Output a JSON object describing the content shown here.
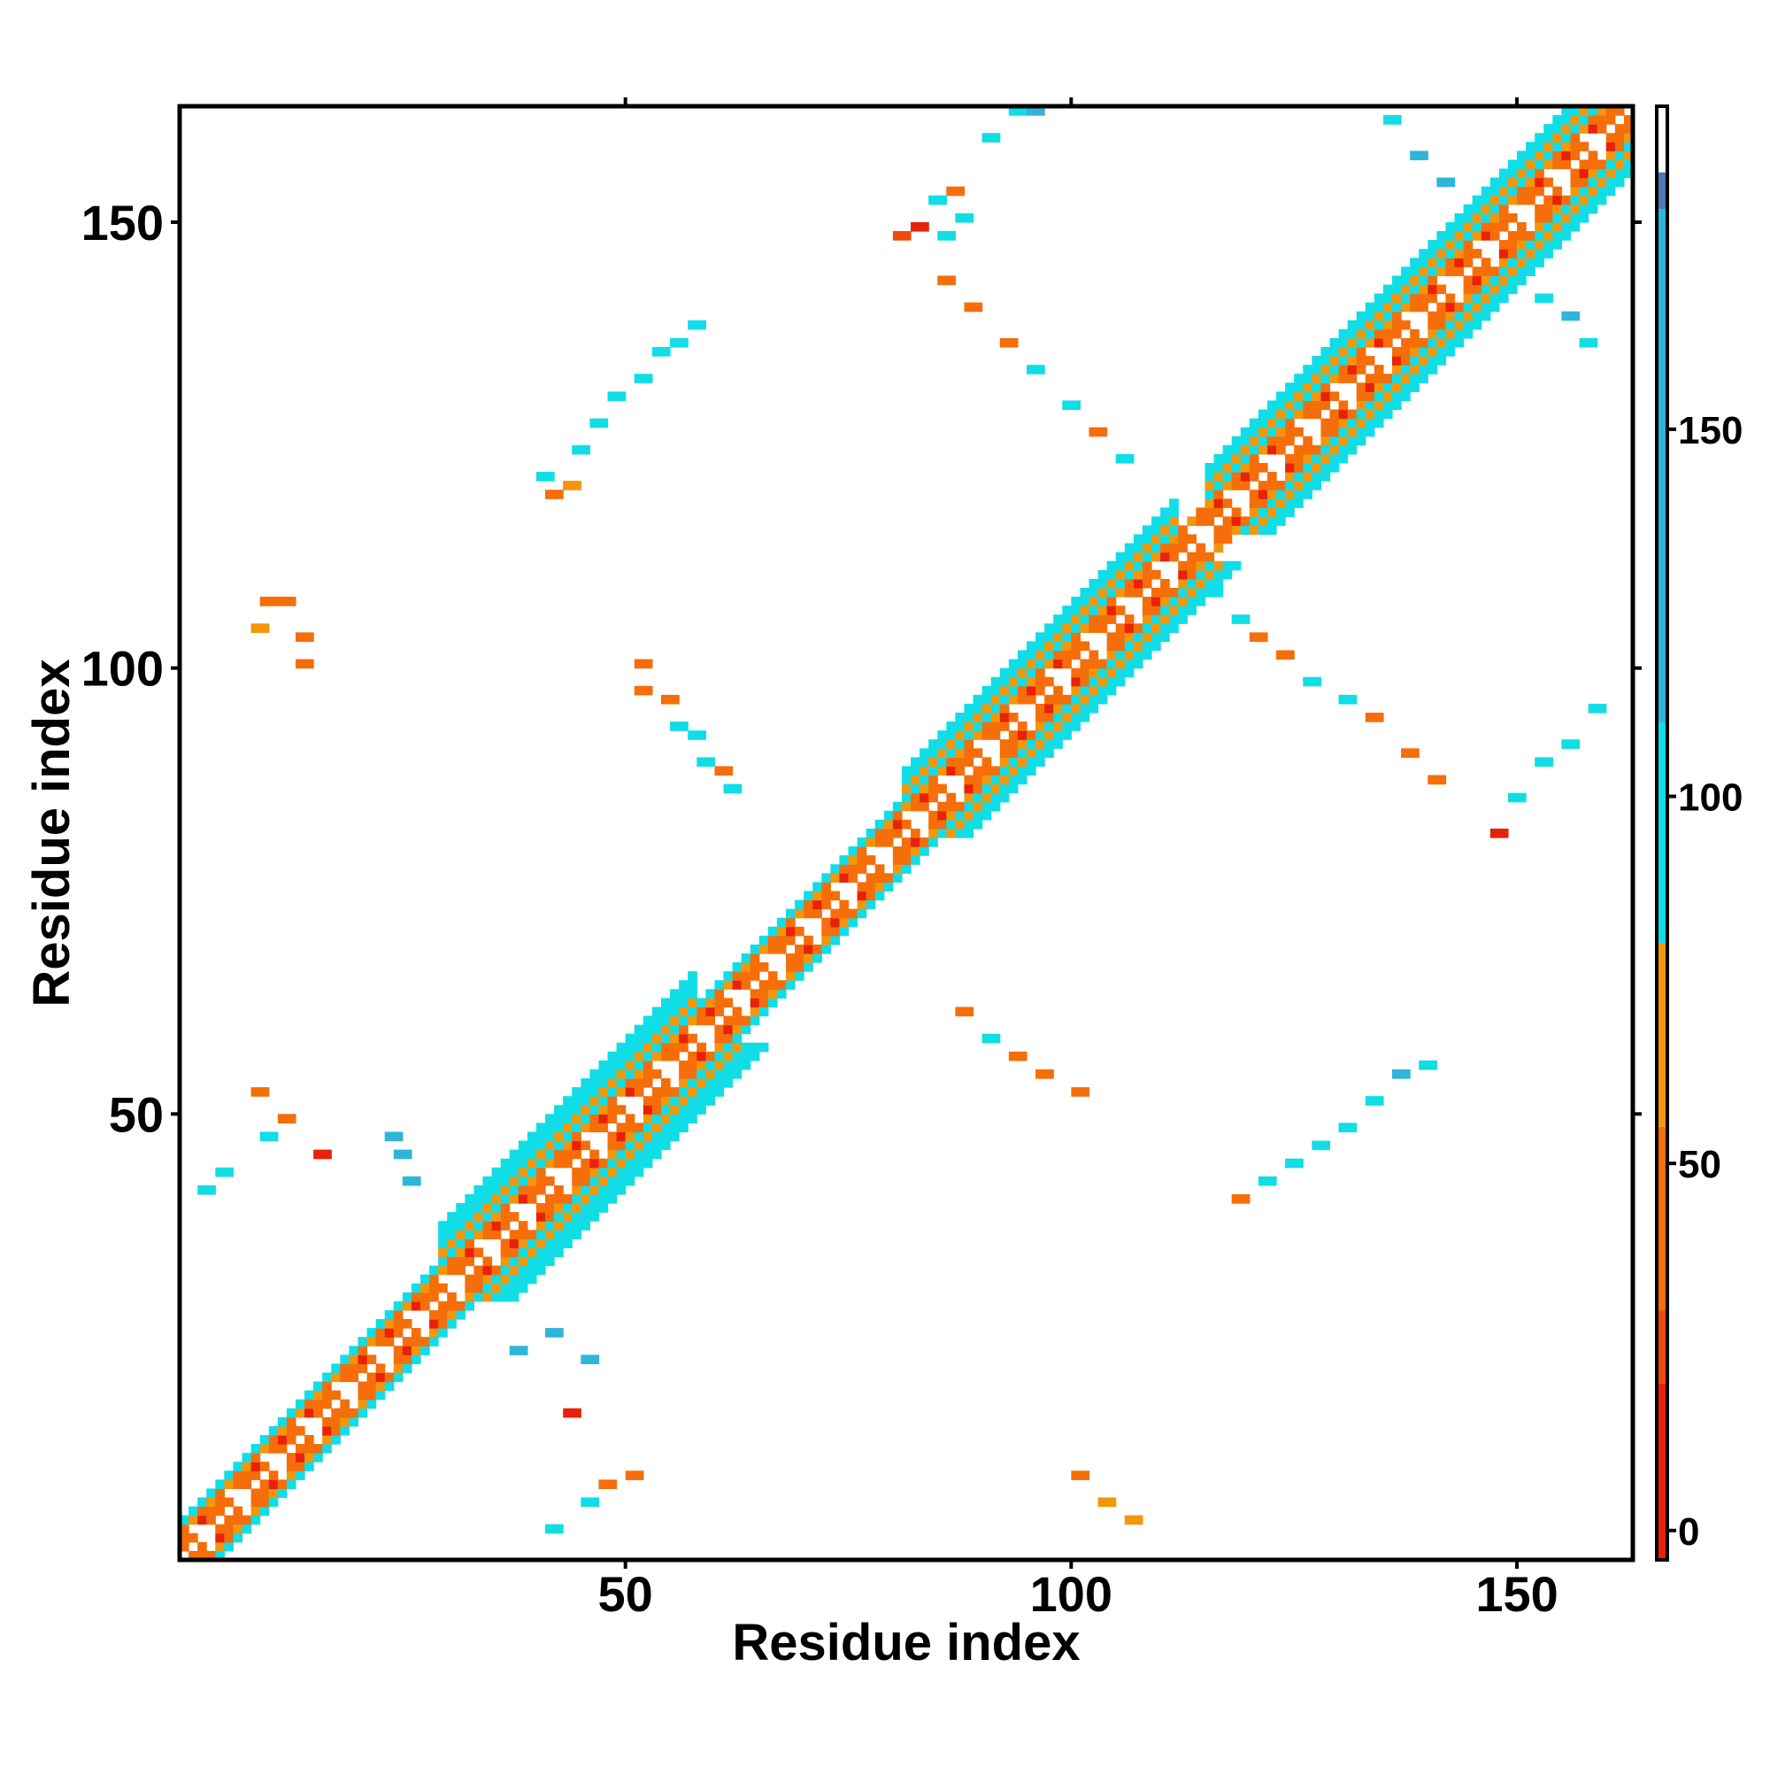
{
  "chart_data": {
    "type": "heatmap",
    "title": "",
    "xlabel": "Residue index",
    "ylabel": "Residue index",
    "xlim": [
      0,
      163
    ],
    "ylim": [
      0,
      163
    ],
    "x_ticks": [
      50,
      100,
      150
    ],
    "y_ticks": [
      50,
      100,
      150
    ],
    "colorbar": {
      "ticks": [
        0,
        50,
        100,
        150
      ],
      "range": [
        -4,
        194
      ],
      "segments": [
        {
          "from": -4,
          "to": 20,
          "color": "#e8220a"
        },
        {
          "from": 20,
          "to": 30,
          "color": "#ee4a0a"
        },
        {
          "from": 30,
          "to": 55,
          "color": "#f56e0a"
        },
        {
          "from": 55,
          "to": 80,
          "color": "#f5960a"
        },
        {
          "from": 80,
          "to": 110,
          "color": "#10dde6"
        },
        {
          "from": 110,
          "to": 180,
          "color": "#2eb6d9"
        },
        {
          "from": 180,
          "to": 194,
          "color": "#4d78b2"
        }
      ]
    },
    "diagonal_bands": [
      {
        "from": 1,
        "to": 30,
        "half_width": 4
      },
      {
        "from": 30,
        "to": 58,
        "half_width": 8
      },
      {
        "from": 58,
        "to": 82,
        "half_width": 4
      },
      {
        "from": 82,
        "to": 112,
        "half_width": 7
      },
      {
        "from": 112,
        "to": 116,
        "half_width": 3
      },
      {
        "from": 116,
        "to": 163,
        "half_width": 7
      }
    ],
    "off_diagonal_contacts": [
      {
        "x": 10,
        "y": 108,
        "value": 50
      },
      {
        "x": 12,
        "y": 108,
        "value": 45
      },
      {
        "x": 9,
        "y": 105,
        "value": 60
      },
      {
        "x": 14,
        "y": 104,
        "value": 40
      },
      {
        "x": 14,
        "y": 101,
        "value": 45
      },
      {
        "x": 52,
        "y": 101,
        "value": 45
      },
      {
        "x": 52,
        "y": 98,
        "value": 40
      },
      {
        "x": 55,
        "y": 97,
        "value": 35
      },
      {
        "x": 56,
        "y": 94,
        "value": 95
      },
      {
        "x": 58,
        "y": 93,
        "value": 90
      },
      {
        "x": 59,
        "y": 90,
        "value": 100
      },
      {
        "x": 61,
        "y": 89,
        "value": 40
      },
      {
        "x": 62,
        "y": 87,
        "value": 85
      },
      {
        "x": 41,
        "y": 122,
        "value": 95
      },
      {
        "x": 42,
        "y": 120,
        "value": 40
      },
      {
        "x": 44,
        "y": 121,
        "value": 60
      },
      {
        "x": 45,
        "y": 125,
        "value": 100
      },
      {
        "x": 47,
        "y": 128,
        "value": 95
      },
      {
        "x": 49,
        "y": 131,
        "value": 105
      },
      {
        "x": 52,
        "y": 133,
        "value": 100
      },
      {
        "x": 54,
        "y": 136,
        "value": 95
      },
      {
        "x": 56,
        "y": 137,
        "value": 100
      },
      {
        "x": 58,
        "y": 139,
        "value": 100
      },
      {
        "x": 81,
        "y": 149,
        "value": 25
      },
      {
        "x": 83,
        "y": 150,
        "value": 15
      },
      {
        "x": 85,
        "y": 153,
        "value": 100
      },
      {
        "x": 87,
        "y": 154,
        "value": 40
      },
      {
        "x": 86,
        "y": 149,
        "value": 95
      },
      {
        "x": 88,
        "y": 151,
        "value": 100
      },
      {
        "x": 86,
        "y": 144,
        "value": 45
      },
      {
        "x": 89,
        "y": 141,
        "value": 40
      },
      {
        "x": 93,
        "y": 137,
        "value": 40
      },
      {
        "x": 96,
        "y": 134,
        "value": 95
      },
      {
        "x": 100,
        "y": 130,
        "value": 100
      },
      {
        "x": 103,
        "y": 127,
        "value": 45
      },
      {
        "x": 106,
        "y": 124,
        "value": 95
      },
      {
        "x": 91,
        "y": 160,
        "value": 105
      },
      {
        "x": 94,
        "y": 163,
        "value": 100
      },
      {
        "x": 96,
        "y": 163,
        "value": 110
      },
      {
        "x": 116,
        "y": 109,
        "value": 100
      },
      {
        "x": 119,
        "y": 106,
        "value": 95
      },
      {
        "x": 121,
        "y": 104,
        "value": 45
      },
      {
        "x": 124,
        "y": 102,
        "value": 40
      },
      {
        "x": 127,
        "y": 99,
        "value": 95
      },
      {
        "x": 131,
        "y": 97,
        "value": 90
      },
      {
        "x": 134,
        "y": 95,
        "value": 40
      },
      {
        "x": 138,
        "y": 91,
        "value": 45
      },
      {
        "x": 141,
        "y": 88,
        "value": 40
      },
      {
        "x": 148,
        "y": 82,
        "value": 15
      },
      {
        "x": 150,
        "y": 86,
        "value": 100
      },
      {
        "x": 153,
        "y": 90,
        "value": 95
      },
      {
        "x": 156,
        "y": 92,
        "value": 100
      },
      {
        "x": 159,
        "y": 96,
        "value": 95
      },
      {
        "x": 136,
        "y": 162,
        "value": 100
      },
      {
        "x": 139,
        "y": 158,
        "value": 110
      },
      {
        "x": 142,
        "y": 155,
        "value": 150
      },
      {
        "x": 153,
        "y": 142,
        "value": 100
      },
      {
        "x": 156,
        "y": 140,
        "value": 110
      },
      {
        "x": 158,
        "y": 137,
        "value": 100
      },
      {
        "x": 88,
        "y": 62,
        "value": 45
      },
      {
        "x": 91,
        "y": 59,
        "value": 95
      },
      {
        "x": 94,
        "y": 57,
        "value": 40
      },
      {
        "x": 97,
        "y": 55,
        "value": 40
      },
      {
        "x": 101,
        "y": 53,
        "value": 45
      },
      {
        "x": 119,
        "y": 41,
        "value": 45
      },
      {
        "x": 122,
        "y": 43,
        "value": 100
      },
      {
        "x": 125,
        "y": 45,
        "value": 95
      },
      {
        "x": 128,
        "y": 47,
        "value": 100
      },
      {
        "x": 131,
        "y": 49,
        "value": 95
      },
      {
        "x": 134,
        "y": 52,
        "value": 100
      },
      {
        "x": 137,
        "y": 55,
        "value": 110
      },
      {
        "x": 140,
        "y": 56,
        "value": 100
      },
      {
        "x": 101,
        "y": 10,
        "value": 40
      },
      {
        "x": 104,
        "y": 7,
        "value": 60
      },
      {
        "x": 107,
        "y": 5,
        "value": 55
      },
      {
        "x": 46,
        "y": 7,
        "value": 100
      },
      {
        "x": 48,
        "y": 9,
        "value": 45
      },
      {
        "x": 51,
        "y": 10,
        "value": 40
      },
      {
        "x": 42,
        "y": 4,
        "value": 100
      },
      {
        "x": 44,
        "y": 17,
        "value": 15
      },
      {
        "x": 38,
        "y": 24,
        "value": 110
      },
      {
        "x": 42,
        "y": 26,
        "value": 110
      },
      {
        "x": 46,
        "y": 23,
        "value": 110
      },
      {
        "x": 24,
        "y": 48,
        "value": 110
      },
      {
        "x": 25,
        "y": 46,
        "value": 120
      },
      {
        "x": 26,
        "y": 43,
        "value": 115
      },
      {
        "x": 16,
        "y": 46,
        "value": 15
      },
      {
        "x": 10,
        "y": 48,
        "value": 100
      },
      {
        "x": 12,
        "y": 50,
        "value": 45
      },
      {
        "x": 9,
        "y": 53,
        "value": 50
      },
      {
        "x": 3,
        "y": 42,
        "value": 100
      },
      {
        "x": 5,
        "y": 44,
        "value": 95
      }
    ]
  }
}
